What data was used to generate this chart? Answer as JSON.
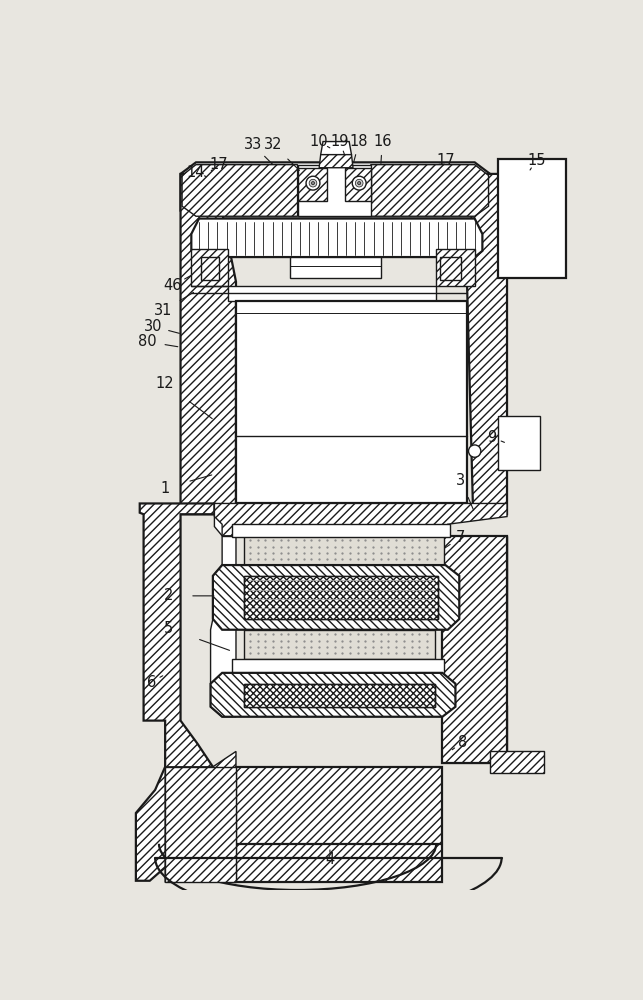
{
  "bg_color": "#e8e6e0",
  "line_color": "#1a1a1a",
  "figsize": [
    6.43,
    10.0
  ],
  "dpi": 100,
  "labels": [
    [
      "14",
      148,
      68
    ],
    [
      "33",
      222,
      32
    ],
    [
      "32",
      248,
      32
    ],
    [
      "10",
      308,
      28
    ],
    [
      "19",
      335,
      28
    ],
    [
      "18",
      360,
      28
    ],
    [
      "16",
      390,
      28
    ],
    [
      "17",
      178,
      58
    ],
    [
      "17",
      472,
      52
    ],
    [
      "15",
      590,
      52
    ],
    [
      "9",
      532,
      412
    ],
    [
      "3",
      492,
      468
    ],
    [
      "7",
      492,
      542
    ],
    [
      "2",
      112,
      618
    ],
    [
      "5",
      112,
      660
    ],
    [
      "8",
      494,
      808
    ],
    [
      "6",
      90,
      730
    ],
    [
      "4",
      322,
      960
    ],
    [
      "12",
      108,
      342
    ],
    [
      "1",
      108,
      478
    ],
    [
      "30",
      92,
      268
    ],
    [
      "31",
      105,
      248
    ],
    [
      "46",
      118,
      215
    ],
    [
      "80",
      85,
      288
    ]
  ]
}
